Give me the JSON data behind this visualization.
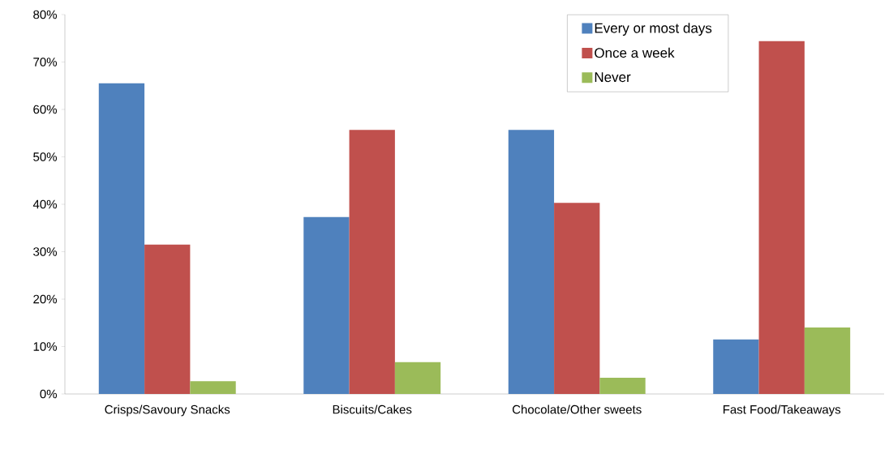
{
  "chart_data": {
    "type": "bar",
    "categories": [
      "Crisps/Savoury Snacks",
      "Biscuits/Cakes",
      "Chocolate/Other sweets",
      "Fast Food/Takeaways"
    ],
    "series": [
      {
        "name": "Every or most days",
        "color": "#4f81bd",
        "values": [
          65.5,
          37.3,
          55.7,
          11.5
        ]
      },
      {
        "name": "Once a week",
        "color": "#c0504d",
        "values": [
          31.5,
          55.7,
          40.3,
          74.4
        ]
      },
      {
        "name": "Never",
        "color": "#9bbb59",
        "values": [
          2.7,
          6.7,
          3.4,
          14.0
        ]
      }
    ],
    "ylim": [
      0,
      80
    ],
    "yticks": [
      {
        "value": 0,
        "label": "0%"
      },
      {
        "value": 10,
        "label": "10%"
      },
      {
        "value": 20,
        "label": "20%"
      },
      {
        "value": 30,
        "label": "30%"
      },
      {
        "value": 40,
        "label": "40%"
      },
      {
        "value": 50,
        "label": "50%"
      },
      {
        "value": 60,
        "label": "60%"
      },
      {
        "value": 70,
        "label": "70%"
      },
      {
        "value": 80,
        "label": "80%"
      }
    ],
    "grid": false,
    "legend": "top right"
  }
}
